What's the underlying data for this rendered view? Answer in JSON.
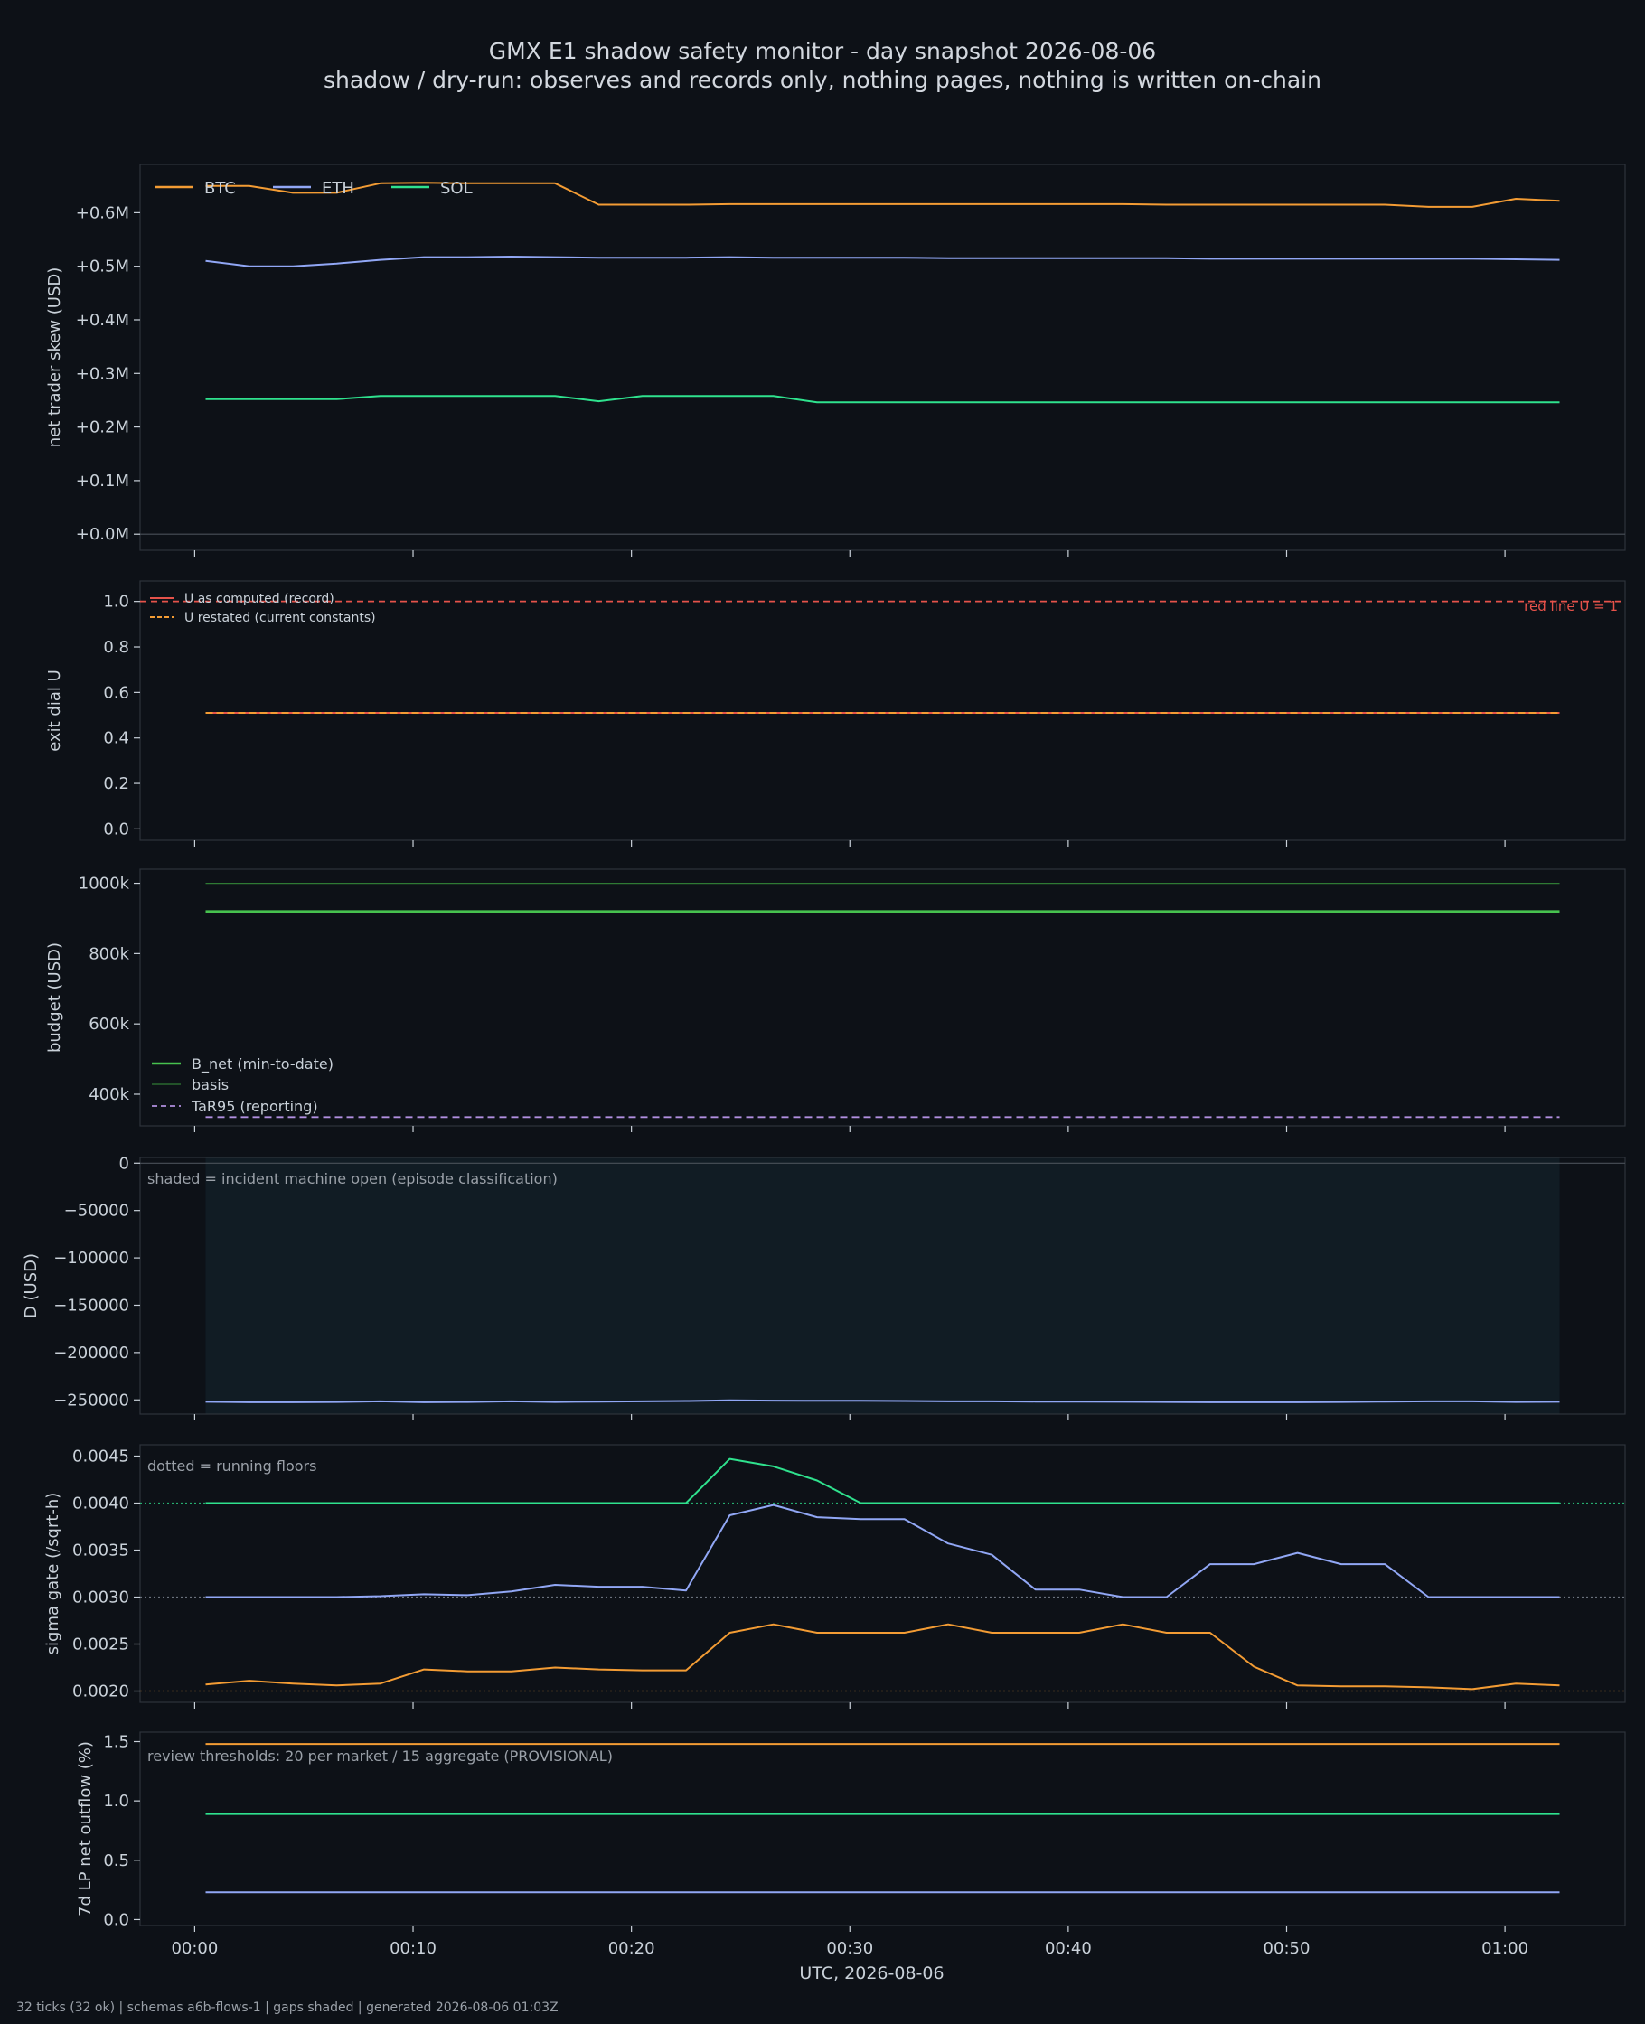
{
  "header": {
    "title": "GMX E1 shadow safety monitor - day snapshot 2026-08-06",
    "subtitle": "shadow / dry-run: observes and records only, nothing pages, nothing is written on-chain"
  },
  "footer": "32 ticks (32 ok) | schemas a6b-flows-1 | gaps shaded | generated 2026-08-06 01:03Z",
  "colors": {
    "background": "#0d1117",
    "BTC": "#f39c34",
    "ETH": "#91a7f5",
    "SOL": "#2fe28e",
    "red": "#e5524a",
    "green": "#47c24f",
    "basis": "#2f7a34",
    "purple": "#b18fe0",
    "shade": "#111c24"
  },
  "chart_data": [
    {
      "type": "line",
      "ylabel": "net trader skew (USD)",
      "ylim": [
        -0.03,
        0.69
      ],
      "y_ticks": [
        0,
        0.1,
        0.2,
        0.3,
        0.4,
        0.5,
        0.6
      ],
      "y_tick_labels": [
        "+0.0M",
        "+0.1M",
        "+0.2M",
        "+0.3M",
        "+0.4M",
        "+0.5M",
        "+0.6M"
      ],
      "legend": [
        "BTC",
        "ETH",
        "SOL"
      ],
      "legend_position": "top-left",
      "x_minutes": [
        0.5,
        2.5,
        4.5,
        6.5,
        8.5,
        10.5,
        12.5,
        14.5,
        16.5,
        18.5,
        20.5,
        22.5,
        24.5,
        26.5,
        28.5,
        30.5,
        32.5,
        34.5,
        36.5,
        38.5,
        40.5,
        42.5,
        44.5,
        46.5,
        48.5,
        50.5,
        52.5,
        54.5,
        56.5,
        58.5,
        60.5,
        62.5
      ],
      "series": [
        {
          "name": "BTC",
          "values": [
            0.65,
            0.65,
            0.637,
            0.637,
            0.655,
            0.656,
            0.655,
            0.655,
            0.655,
            0.615,
            0.615,
            0.615,
            0.616,
            0.616,
            0.616,
            0.616,
            0.616,
            0.616,
            0.616,
            0.616,
            0.616,
            0.616,
            0.615,
            0.615,
            0.615,
            0.615,
            0.615,
            0.615,
            0.611,
            0.611,
            0.626,
            0.622
          ]
        },
        {
          "name": "ETH",
          "values": [
            0.51,
            0.5,
            0.5,
            0.505,
            0.512,
            0.517,
            0.517,
            0.518,
            0.517,
            0.516,
            0.516,
            0.516,
            0.517,
            0.516,
            0.516,
            0.516,
            0.516,
            0.515,
            0.515,
            0.515,
            0.515,
            0.515,
            0.515,
            0.514,
            0.514,
            0.514,
            0.514,
            0.514,
            0.514,
            0.514,
            0.513,
            0.512
          ]
        },
        {
          "name": "SOL",
          "values": [
            0.252,
            0.252,
            0.252,
            0.252,
            0.258,
            0.258,
            0.258,
            0.258,
            0.258,
            0.248,
            0.258,
            0.258,
            0.258,
            0.258,
            0.246,
            0.246,
            0.246,
            0.246,
            0.246,
            0.246,
            0.246,
            0.246,
            0.246,
            0.246,
            0.246,
            0.246,
            0.246,
            0.246,
            0.246,
            0.246,
            0.246,
            0.246
          ]
        }
      ]
    },
    {
      "type": "line",
      "ylabel": "exit dial U",
      "ylim": [
        -0.05,
        1.09
      ],
      "y_ticks": [
        0,
        0.2,
        0.4,
        0.6,
        0.8,
        1.0
      ],
      "y_tick_labels": [
        "0.0",
        "0.2",
        "0.4",
        "0.6",
        "0.8",
        "1.0"
      ],
      "legend": [
        "U as computed (record)",
        "U restated (current constants)"
      ],
      "legend_position": "top-left",
      "annotations": [
        "red line U = 1"
      ],
      "x_minutes": [
        0.5,
        62.5
      ],
      "series": [
        {
          "name": "U as computed (record)",
          "values": [
            0.51,
            0.51
          ]
        },
        {
          "name": "U restated (current constants)",
          "values": [
            0.51,
            0.51
          ]
        }
      ]
    },
    {
      "type": "line",
      "ylabel": "budget (USD)",
      "ylim": [
        310000,
        1040000
      ],
      "y_ticks": [
        400000,
        600000,
        800000,
        1000000
      ],
      "y_tick_labels": [
        "400k",
        "600k",
        "800k",
        "1000k"
      ],
      "legend": [
        "B_net (min-to-date)",
        "basis",
        "TaR95 (reporting)"
      ],
      "legend_position": "lower-left",
      "x_minutes": [
        0.5,
        62.5
      ],
      "series": [
        {
          "name": "B_net (min-to-date)",
          "values": [
            920000,
            920000
          ]
        },
        {
          "name": "basis",
          "values": [
            1000000,
            1000000
          ]
        },
        {
          "name": "TaR95 (reporting)",
          "values": [
            335000,
            335000
          ]
        }
      ]
    },
    {
      "type": "area",
      "ylabel": "D (USD)",
      "ylim": [
        -265000,
        6000
      ],
      "y_ticks": [
        0,
        -50000,
        -100000,
        -150000,
        -200000,
        -250000
      ],
      "y_tick_labels": [
        "0",
        "−50000",
        "−100000",
        "−150000",
        "−200000",
        "−250000"
      ],
      "annotations": [
        "shaded = incident machine open (episode classification)"
      ],
      "shaded_x_minutes": [
        0.5,
        62.5
      ],
      "x_minutes": [
        0.5,
        2.5,
        4.5,
        6.5,
        8.5,
        10.5,
        12.5,
        14.5,
        16.5,
        18.5,
        20.5,
        22.5,
        24.5,
        26.5,
        28.5,
        30.5,
        32.5,
        34.5,
        36.5,
        38.5,
        40.5,
        42.5,
        44.5,
        46.5,
        48.5,
        50.5,
        52.5,
        54.5,
        56.5,
        58.5,
        60.5,
        62.5
      ],
      "series": [
        {
          "values": [
            -252000,
            -252500,
            -252500,
            -252200,
            -251500,
            -252500,
            -252200,
            -251500,
            -252200,
            -251800,
            -251500,
            -251200,
            -250500,
            -250800,
            -251000,
            -251000,
            -251200,
            -251500,
            -251500,
            -251800,
            -251800,
            -252000,
            -252200,
            -252500,
            -252500,
            -252500,
            -252200,
            -251800,
            -251500,
            -251500,
            -252200,
            -252000
          ]
        }
      ]
    },
    {
      "type": "line",
      "ylabel": "sigma gate (/sqrt-h)",
      "ylim": [
        0.00188,
        0.00462
      ],
      "y_ticks": [
        0.002,
        0.0025,
        0.003,
        0.0035,
        0.004,
        0.0045
      ],
      "y_tick_labels": [
        "0.0020",
        "0.0025",
        "0.0030",
        "0.0035",
        "0.0040",
        "0.0045"
      ],
      "annotations": [
        "dotted = running floors"
      ],
      "floors": [
        0.004,
        0.003,
        0.002
      ],
      "x_minutes": [
        0.5,
        2.5,
        4.5,
        6.5,
        8.5,
        10.5,
        12.5,
        14.5,
        16.5,
        18.5,
        20.5,
        22.5,
        24.5,
        26.5,
        28.5,
        30.5,
        32.5,
        34.5,
        36.5,
        38.5,
        40.5,
        42.5,
        44.5,
        46.5,
        48.5,
        50.5,
        52.5,
        54.5,
        56.5,
        58.5,
        60.5,
        62.5
      ],
      "series": [
        {
          "name": "SOL",
          "values": [
            0.004,
            0.004,
            0.004,
            0.004,
            0.004,
            0.004,
            0.004,
            0.004,
            0.004,
            0.004,
            0.004,
            0.004,
            0.00447,
            0.00439,
            0.00424,
            0.004,
            0.004,
            0.004,
            0.004,
            0.004,
            0.004,
            0.004,
            0.004,
            0.004,
            0.004,
            0.004,
            0.004,
            0.004,
            0.004,
            0.004,
            0.004,
            0.004
          ]
        },
        {
          "name": "ETH",
          "values": [
            0.003,
            0.003,
            0.003,
            0.003,
            0.00301,
            0.00303,
            0.00302,
            0.00306,
            0.00313,
            0.00311,
            0.00311,
            0.00307,
            0.00387,
            0.00398,
            0.00385,
            0.00383,
            0.00383,
            0.00357,
            0.00345,
            0.00308,
            0.00308,
            0.003,
            0.003,
            0.00335,
            0.00335,
            0.00347,
            0.00335,
            0.00335,
            0.003,
            0.003,
            0.003,
            0.003
          ]
        },
        {
          "name": "BTC",
          "values": [
            0.00207,
            0.00211,
            0.00208,
            0.00206,
            0.00208,
            0.00223,
            0.00221,
            0.00221,
            0.00225,
            0.00223,
            0.00222,
            0.00222,
            0.00262,
            0.00271,
            0.00262,
            0.00262,
            0.00262,
            0.00271,
            0.00262,
            0.00262,
            0.00262,
            0.00271,
            0.00262,
            0.00262,
            0.00226,
            0.00206,
            0.00205,
            0.00205,
            0.00204,
            0.00202,
            0.00208,
            0.00206
          ]
        }
      ]
    },
    {
      "type": "line",
      "ylabel": "7d LP net outflow (%)",
      "ylim": [
        -0.05,
        1.58
      ],
      "y_ticks": [
        0,
        0.5,
        1.0,
        1.5
      ],
      "y_tick_labels": [
        "0.0",
        "0.5",
        "1.0",
        "1.5"
      ],
      "annotations": [
        "review thresholds: 20 per market / 15 aggregate (PROVISIONAL)"
      ],
      "xlabel": "UTC, 2026-08-06",
      "x_ticks": [
        0,
        10,
        20,
        30,
        40,
        50,
        60
      ],
      "x_tick_labels": [
        "00:00",
        "00:10",
        "00:20",
        "00:30",
        "00:40",
        "00:50",
        "01:00"
      ],
      "xlim": [
        -2.5,
        65.5
      ],
      "x_minutes": [
        0.5,
        62.5
      ],
      "series": [
        {
          "name": "BTC",
          "values": [
            1.48,
            1.48
          ]
        },
        {
          "name": "SOL",
          "values": [
            0.89,
            0.89
          ]
        },
        {
          "name": "ETH",
          "values": [
            0.23,
            0.23
          ]
        }
      ]
    }
  ]
}
